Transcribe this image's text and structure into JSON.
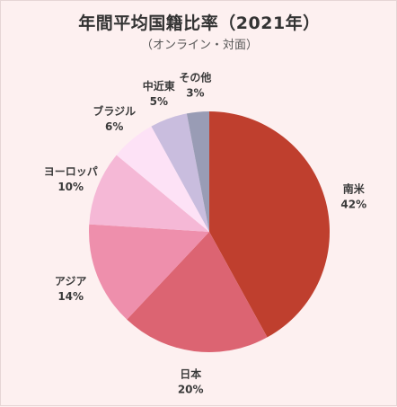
{
  "chart_data": {
    "type": "pie",
    "title": "年間平均国籍比率（2021年）",
    "subtitle": "（オンライン・対面）",
    "slices": [
      {
        "label": "南米",
        "value": 42,
        "color": "#bf3f2e"
      },
      {
        "label": "日本",
        "value": 20,
        "color": "#dc6472"
      },
      {
        "label": "アジア",
        "value": 14,
        "color": "#ee8fac"
      },
      {
        "label": "ヨーロッパ",
        "value": 10,
        "color": "#f5b8d6"
      },
      {
        "label": "ブラジル",
        "value": 6,
        "color": "#fde2f6"
      },
      {
        "label": "中近東",
        "value": 5,
        "color": "#c9bdde"
      },
      {
        "label": "その他",
        "value": 3,
        "color": "#999cb5"
      }
    ]
  }
}
